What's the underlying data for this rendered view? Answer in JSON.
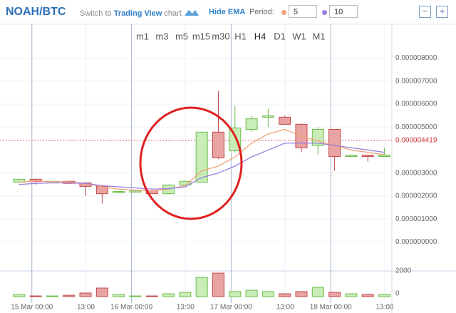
{
  "header": {
    "pair": "NOAH/BTC",
    "switch_prefix": "Switch to",
    "switch_link": "Trading View",
    "switch_suffix": "chart",
    "ema_toggle": "Hide EMA",
    "period_label": "Period:",
    "zoom_out": "−",
    "zoom_in": "+"
  },
  "timeframes": [
    "m1",
    "m3",
    "m5",
    "m15",
    "m30",
    "H1",
    "H4",
    "D1",
    "W1",
    "M1"
  ],
  "selected_timeframe": "H4",
  "chart_data": {
    "type": "candlestick",
    "categories": [
      null,
      null,
      null,
      null,
      null,
      null,
      null,
      null,
      null,
      null,
      null,
      null,
      null,
      null,
      null,
      null,
      null,
      null,
      null,
      null,
      null,
      null,
      null
    ],
    "open": [
      2.6e-06,
      2.73e-06,
      2.57e-06,
      2.64e-06,
      2.57e-06,
      2.42e-06,
      2.14e-06,
      2.17e-06,
      2.23e-06,
      2.1e-06,
      2.48e-06,
      2.6e-06,
      4.78e-06,
      3.97e-06,
      4.9e-06,
      5.43e-06,
      5.43e-06,
      5.12e-06,
      4.2e-06,
      4.9e-06,
      3.72e-06,
      3.78e-06,
      3.72e-06
    ],
    "high": [
      2.75e-06,
      2.76e-06,
      2.66e-06,
      2.66e-06,
      2.6e-06,
      2.45e-06,
      2.22e-06,
      2.25e-06,
      2.26e-06,
      2.5e-06,
      2.66e-06,
      4.8e-06,
      6.57e-06,
      5.9e-06,
      5.5e-06,
      5.8e-06,
      5.5e-06,
      5.15e-06,
      5e-06,
      4.9e-06,
      3.8e-06,
      3.8e-06,
      4.1e-06
    ],
    "low": [
      2.55e-06,
      2.5e-06,
      2.54e-06,
      2.52e-06,
      2e-06,
      1.67e-06,
      2.12e-06,
      2.15e-06,
      2.08e-06,
      2.08e-06,
      2.46e-06,
      2.58e-06,
      3.6e-06,
      3.9e-06,
      4.8e-06,
      5e-06,
      5.1e-06,
      3.9e-06,
      3.8e-06,
      3.1e-06,
      3.7e-06,
      3.5e-06,
      3.7e-06
    ],
    "close": [
      2.73e-06,
      2.63e-06,
      2.64e-06,
      2.55e-06,
      2.42e-06,
      2.1e-06,
      2.2e-06,
      2.22e-06,
      2.1e-06,
      2.48e-06,
      2.64e-06,
      4.78e-06,
      3.66e-06,
      4.96e-06,
      5.36e-06,
      5.49e-06,
      5.12e-06,
      4.1e-06,
      4.9e-06,
      3.72e-06,
      3.78e-06,
      3.72e-06,
      3.78e-06
    ],
    "up_color": "#c8edb6",
    "up_edge": "#6dbb4f",
    "down_color": "#e9a3a3",
    "down_edge": "#c44848",
    "series": [
      {
        "name": "5",
        "color": "#f2a27a",
        "values": [
          2.6e-06,
          2.65e-06,
          2.63e-06,
          2.62e-06,
          2.55e-06,
          2.4e-06,
          2.3e-06,
          2.25e-06,
          2.22e-06,
          2.3e-06,
          2.45e-06,
          3.1e-06,
          3.3e-06,
          3.7e-06,
          4.3e-06,
          4.7e-06,
          4.9e-06,
          4.6e-06,
          4.4e-06,
          4.2e-06,
          4e-06,
          3.9e-06,
          3.8e-06
        ]
      },
      {
        "name": "10",
        "color": "#9a7fe0",
        "values": [
          2.5e-06,
          2.55e-06,
          2.57e-06,
          2.57e-06,
          2.55e-06,
          2.45e-06,
          2.4e-06,
          2.35e-06,
          2.3e-06,
          2.32e-06,
          2.4e-06,
          2.8e-06,
          3e-06,
          3.3e-06,
          3.7e-06,
          4e-06,
          4.3e-06,
          4.3e-06,
          4.3e-06,
          4.2e-06,
          4.1e-06,
          4e-06,
          3.9e-06
        ]
      }
    ],
    "ylim": [
      -1.2e-06,
      9.6e-06
    ],
    "yticks": [
      {
        "value": 0,
        "label": "0.000000000"
      },
      {
        "value": 1e-06,
        "label": "0.000001000"
      },
      {
        "value": 2e-06,
        "label": "0.000002000"
      },
      {
        "value": 3e-06,
        "label": "0.000003000"
      },
      {
        "value": 5e-06,
        "label": "0.000005000"
      },
      {
        "value": 6e-06,
        "label": "0.000006000"
      },
      {
        "value": 7e-06,
        "label": "0.000007000"
      },
      {
        "value": 8e-06,
        "label": "0.000008000"
      }
    ],
    "last_price": {
      "value": 4.419e-06,
      "label": "0.000004419"
    },
    "xlim": [
      -1.15,
      22.45
    ],
    "xticks": [
      {
        "value": 0.77,
        "label": "15 Mar 00:00"
      },
      {
        "value": 4.02,
        "label": "13:00"
      },
      {
        "value": 6.77,
        "label": "16 Mar 00:00"
      },
      {
        "value": 10.02,
        "label": "13:00"
      },
      {
        "value": 12.77,
        "label": "17 Mar 00:00"
      },
      {
        "value": 16.02,
        "label": "13:00"
      },
      {
        "value": 18.77,
        "label": "18 Mar 00:00"
      },
      {
        "value": 22.02,
        "label": "13:00"
      }
    ],
    "volume": [
      190,
      60,
      60,
      120,
      310,
      750,
      190,
      60,
      60,
      250,
      375,
      1690,
      2060,
      440,
      560,
      440,
      250,
      440,
      810,
      375,
      250,
      190,
      190
    ],
    "volume_lim": [
      0,
      2190
    ],
    "volume_ticks": [
      0,
      2000
    ]
  }
}
